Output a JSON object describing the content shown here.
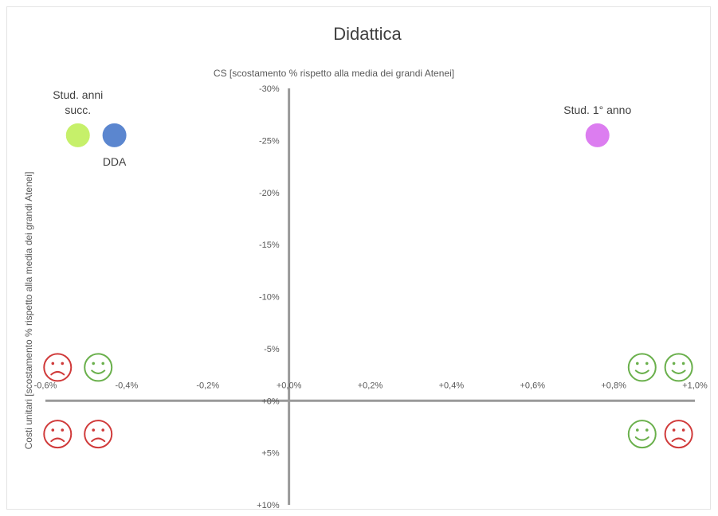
{
  "chart_data": {
    "type": "scatter",
    "title": "Didattica",
    "xlabel": "CS [scostamento % rispetto alla media dei grandi Atenei]",
    "ylabel": "Costi unitari [scostamento % rispetto alla media dei grandi Atenei]",
    "xlim": [
      -0.6,
      1.0
    ],
    "ylim": [
      10,
      -30
    ],
    "x_ticks": [
      -0.6,
      -0.4,
      -0.2,
      0.0,
      0.2,
      0.4,
      0.6,
      0.8,
      1.0
    ],
    "x_tick_labels": [
      "-0,6%",
      "-0,4%",
      "-0,2%",
      "+0,0%",
      "+0,2%",
      "+0,4%",
      "+0,6%",
      "+0,8%",
      "+1,0%"
    ],
    "y_ticks": [
      -30,
      -25,
      -20,
      -15,
      -10,
      -5,
      0,
      5,
      10
    ],
    "y_tick_labels": [
      "-30%",
      "-25%",
      "-20%",
      "-15%",
      "-10%",
      "-5%",
      "+0%",
      "+5%",
      "+10%"
    ],
    "grid": false,
    "points": [
      {
        "label": "Stud. anni\nsucc.",
        "x": -0.52,
        "y": -25.5,
        "color": "#c6f06a",
        "label_pos": "above"
      },
      {
        "label": "DDA",
        "x": -0.43,
        "y": -25.5,
        "color": "#5b86cf",
        "label_pos": "below"
      },
      {
        "label": "Stud. 1° anno",
        "x": 0.76,
        "y": -25.5,
        "color": "#dc7df0",
        "label_pos": "above"
      }
    ],
    "quadrant_faces": [
      {
        "icon": "sad-face-icon",
        "x": -0.57,
        "y": -3.2,
        "color": "#d03a3a"
      },
      {
        "icon": "happy-face-icon",
        "x": -0.47,
        "y": -3.2,
        "color": "#6ab04c"
      },
      {
        "icon": "happy-face-icon",
        "x": 0.87,
        "y": -3.2,
        "color": "#6ab04c"
      },
      {
        "icon": "happy-face-icon",
        "x": 0.96,
        "y": -3.2,
        "color": "#6ab04c"
      },
      {
        "icon": "sad-face-icon",
        "x": -0.57,
        "y": 3.2,
        "color": "#d03a3a"
      },
      {
        "icon": "sad-face-icon",
        "x": -0.47,
        "y": 3.2,
        "color": "#d03a3a"
      },
      {
        "icon": "happy-face-icon",
        "x": 0.87,
        "y": 3.2,
        "color": "#6ab04c"
      },
      {
        "icon": "sad-face-icon",
        "x": 0.96,
        "y": 3.2,
        "color": "#d03a3a"
      }
    ]
  }
}
